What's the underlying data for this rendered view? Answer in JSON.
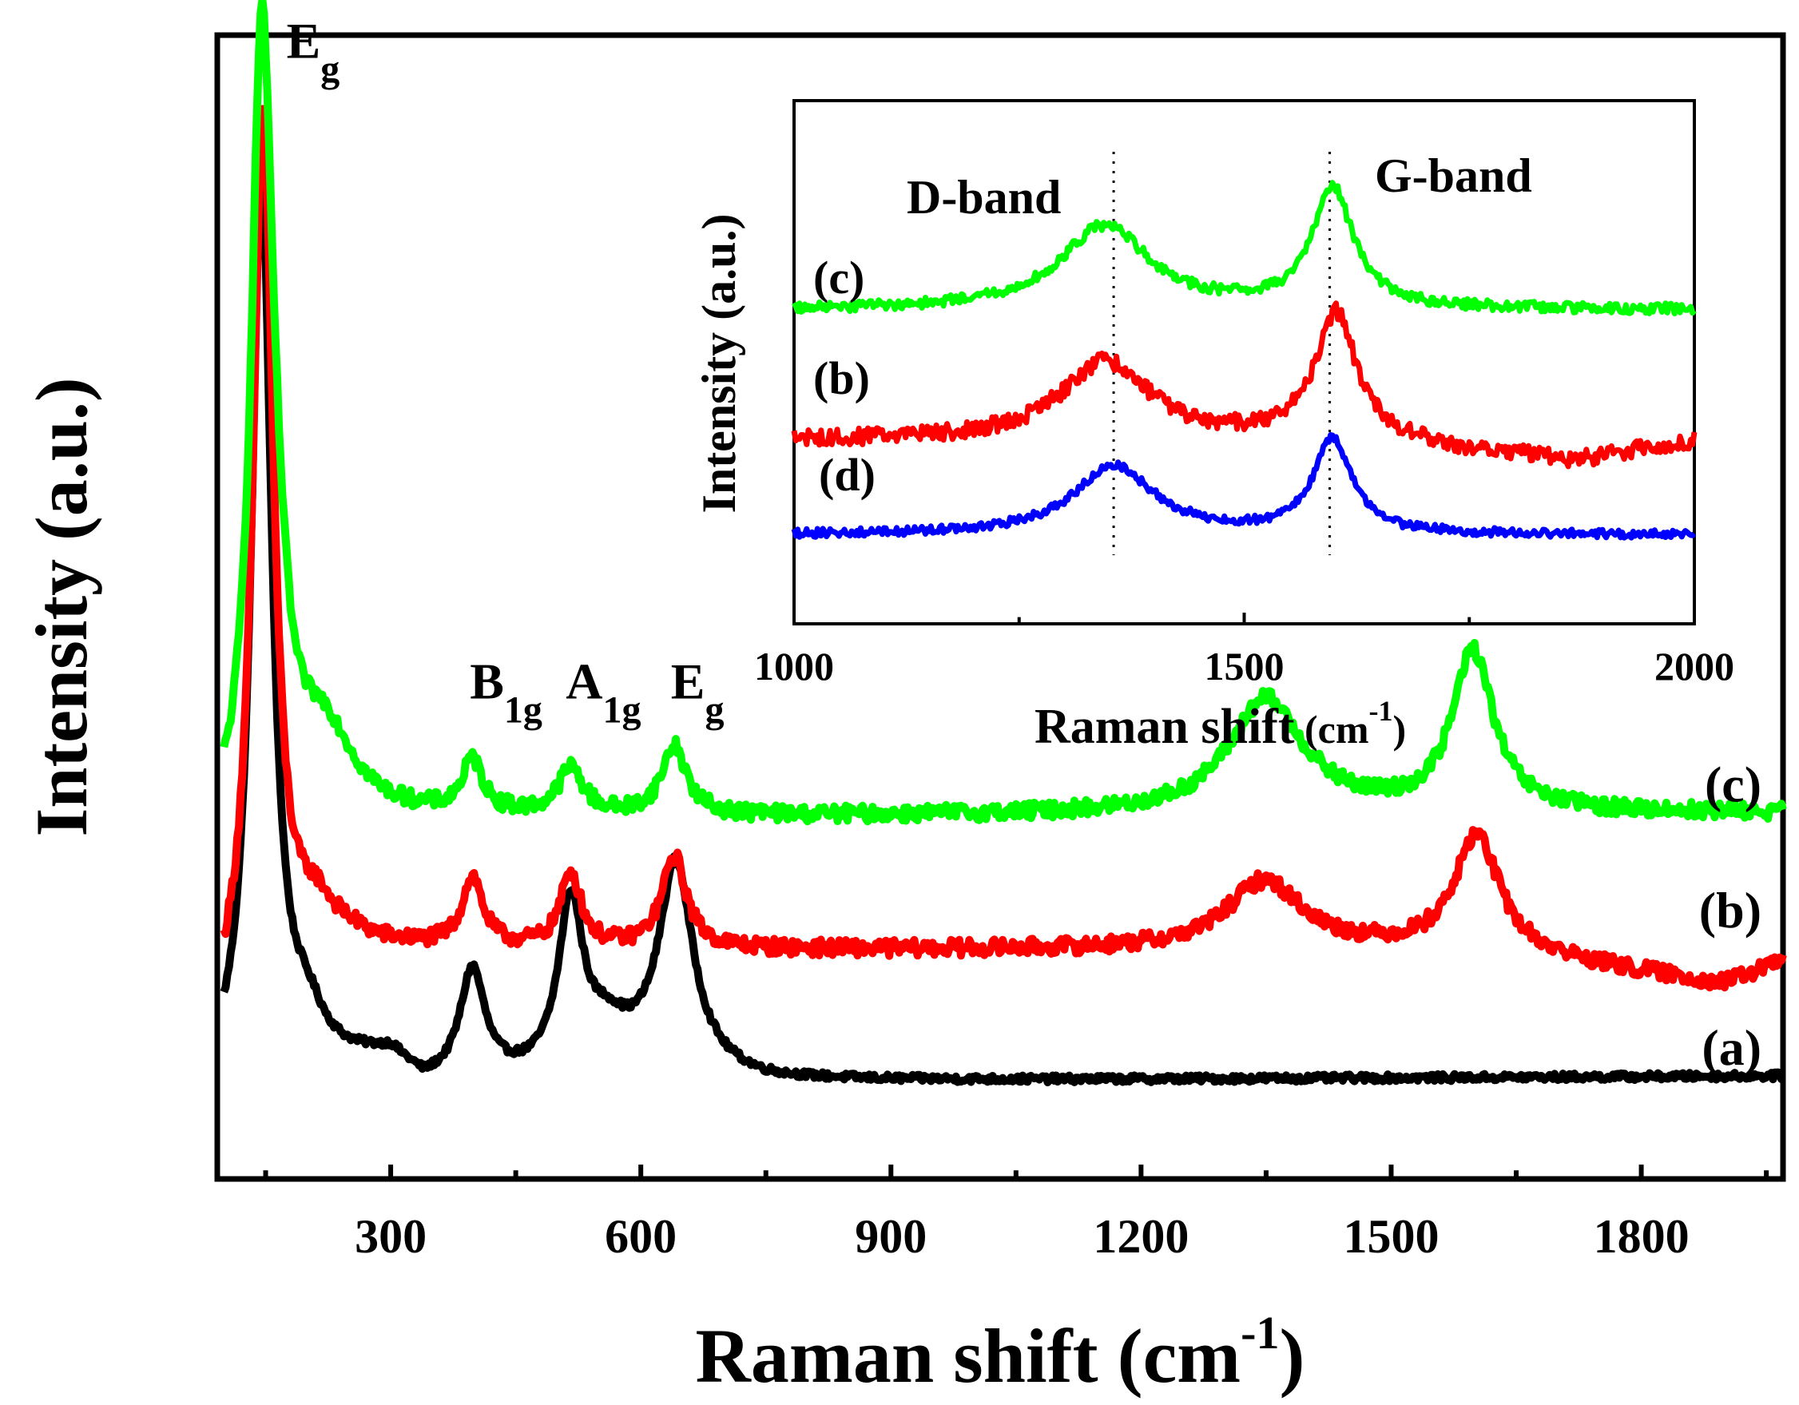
{
  "chart_data": [
    {
      "type": "line",
      "title": "",
      "xlabel": "Raman shift (cm",
      "xlabel_sup": "-1",
      "xlabel_close": ")",
      "ylabel": "Intensity (a.u.)",
      "xlim": [
        92,
        1970
      ],
      "ylim": [
        0,
        1
      ],
      "xticks": [
        300,
        600,
        900,
        1200,
        1500,
        1800
      ],
      "xtick_labels": [
        "300",
        "600",
        "900",
        "1200",
        "1500",
        "1800"
      ],
      "yticks": [],
      "grid": false,
      "series": [
        {
          "name": "(a)",
          "color": "#000000",
          "baseline": 0.09,
          "noise": 0.003,
          "background": [
            [
              100,
              0.08
            ],
            [
              300,
              0.105
            ],
            [
              340,
              0.08
            ],
            [
              460,
              0.085
            ],
            [
              600,
              0.095
            ],
            [
              750,
              0.085
            ],
            [
              1970,
              0.09
            ]
          ],
          "peaks": [
            [
              145,
              0.79,
              15
            ],
            [
              200,
              0.035,
              25
            ],
            [
              398,
              0.095,
              18
            ],
            [
              516,
              0.145,
              18
            ],
            [
              560,
              0.03,
              30
            ],
            [
              642,
              0.18,
              25
            ]
          ]
        },
        {
          "name": "(b)",
          "color": "#ff0000",
          "baseline": 0.2,
          "noise": 0.007,
          "background": [
            [
              100,
              0.14
            ],
            [
              250,
              0.2
            ],
            [
              1600,
              0.2
            ],
            [
              1900,
              0.17
            ],
            [
              1970,
              0.19
            ]
          ],
          "peaks": [
            [
              147,
              0.77,
              15
            ],
            [
              210,
              0.04,
              30
            ],
            [
              398,
              0.06,
              15
            ],
            [
              516,
              0.065,
              15
            ],
            [
              640,
              0.08,
              18
            ],
            [
              1348,
              0.06,
              55
            ],
            [
              1603,
              0.1,
              32
            ]
          ]
        },
        {
          "name": "(c)",
          "color": "#00ff00",
          "baseline": 0.315,
          "noise": 0.007,
          "background": [
            [
              100,
              0.29
            ],
            [
              250,
              0.315
            ],
            [
              1970,
              0.32
            ]
          ],
          "peaks": [
            [
              145,
              0.63,
              15
            ],
            [
              160,
              0.13,
              20
            ],
            [
              220,
              0.07,
              40
            ],
            [
              398,
              0.045,
              15
            ],
            [
              516,
              0.04,
              18
            ],
            [
              640,
              0.06,
              18
            ],
            [
              1350,
              0.1,
              55
            ],
            [
              1598,
              0.14,
              30
            ]
          ]
        }
      ],
      "annotations": [
        {
          "text": "E",
          "sub": "g",
          "x": 175,
          "y": 0.98
        },
        {
          "text": "B",
          "sub": "1g",
          "x": 395,
          "y": 0.42
        },
        {
          "text": "A",
          "sub": "1g",
          "x": 510,
          "y": 0.42
        },
        {
          "text": "E",
          "sub": "g",
          "x": 636,
          "y": 0.42
        }
      ],
      "curve_labels": [
        "(c)",
        "(b)",
        "(a)"
      ]
    },
    {
      "type": "line",
      "title": "",
      "xlabel": "Raman shift",
      "xlabel_tail": " (cm",
      "xlabel_sup": "-1",
      "xlabel_close": ")",
      "ylabel": "Intensity (a.u.)",
      "xlim": [
        1000,
        2000
      ],
      "ylim": [
        0,
        1
      ],
      "xticks": [
        1000,
        1500,
        2000
      ],
      "xtick_labels": [
        "1000",
        "1500",
        "2000"
      ],
      "yticks": [],
      "grid": false,
      "reference_lines": [
        1355,
        1595
      ],
      "band_labels": [
        "D-band",
        "G-band"
      ],
      "series": [
        {
          "name": "(c)",
          "color": "#00ff00",
          "baseline": 0.6,
          "noise": 0.01,
          "background": [
            [
              1000,
              0.6
            ],
            [
              2000,
              0.6
            ]
          ],
          "peaks": [
            [
              1345,
              0.16,
              60
            ],
            [
              1598,
              0.23,
              28
            ]
          ]
        },
        {
          "name": "(b)",
          "color": "#ff0000",
          "baseline": 0.35,
          "noise": 0.016,
          "background": [
            [
              1000,
              0.35
            ],
            [
              1600,
              0.35
            ],
            [
              1870,
              0.31
            ],
            [
              2000,
              0.35
            ]
          ],
          "peaks": [
            [
              1345,
              0.15,
              60
            ],
            [
              1602,
              0.24,
              28
            ]
          ]
        },
        {
          "name": "(d)",
          "color": "#0000ff",
          "baseline": 0.17,
          "noise": 0.008,
          "background": [
            [
              1000,
              0.17
            ],
            [
              2000,
              0.17
            ]
          ],
          "peaks": [
            [
              1355,
              0.13,
              55
            ],
            [
              1598,
              0.18,
              26
            ]
          ]
        }
      ]
    }
  ]
}
